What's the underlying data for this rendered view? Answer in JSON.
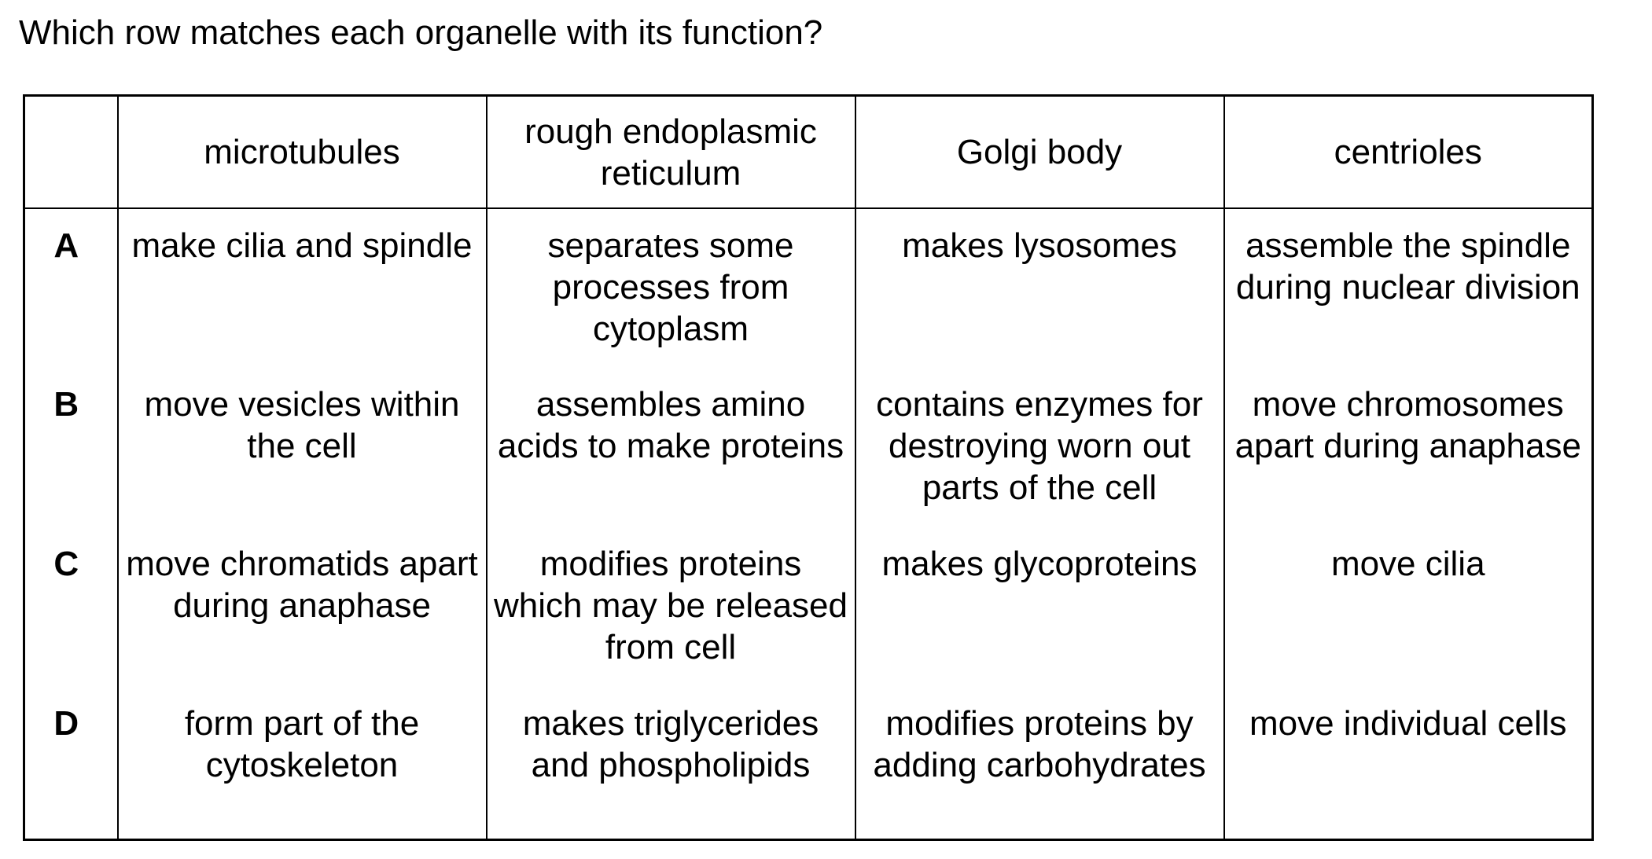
{
  "question": "Which row matches each organelle with its function?",
  "table": {
    "headers": [
      "",
      "microtubules",
      "rough endoplasmic reticulum",
      "Golgi body",
      "centrioles"
    ],
    "rows": [
      {
        "key": "A",
        "microtubules": "make cilia and spindle",
        "rer": "separates some processes from cytoplasm",
        "golgi": "makes lysosomes",
        "centrioles": "assemble the spindle during nuclear division"
      },
      {
        "key": "B",
        "microtubules": "move vesicles within the cell",
        "rer": "assembles amino acids to make proteins",
        "golgi": "contains enzymes for destroying worn out parts of the cell",
        "centrioles": "move chromosomes apart during anaphase"
      },
      {
        "key": "C",
        "microtubules": "move chromatids apart during anaphase",
        "rer": "modifies proteins which may be released from cell",
        "golgi": "makes glycoproteins",
        "centrioles": "move cilia"
      },
      {
        "key": "D",
        "microtubules": "form part of the cytoskeleton",
        "rer": "makes triglycerides and phospholipids",
        "golgi": "modifies proteins by adding carbohydrates",
        "centrioles": "move individual cells"
      }
    ]
  }
}
